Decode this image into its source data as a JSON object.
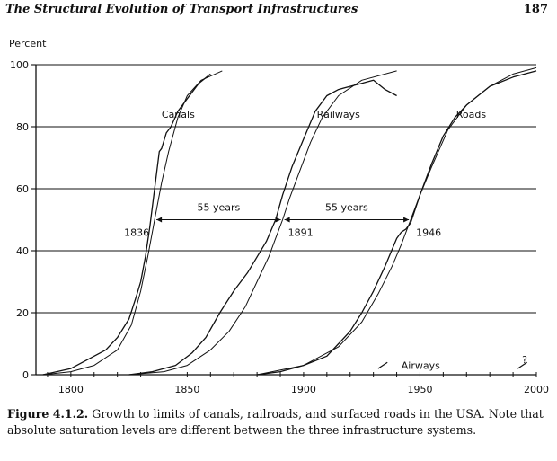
{
  "page": {
    "running_title": "The Structural Evolution of Transport Infrastructures",
    "page_number": "187"
  },
  "caption": {
    "label": "Figure 4.1.2.",
    "text": "Growth to limits of canals, railroads, and surfaced roads in the USA. Note that absolute saturation levels are different between the three infrastructure systems."
  },
  "chart_data": {
    "type": "line",
    "title": "",
    "ylabel": "Percent",
    "xlabel": "",
    "xlim": [
      1785,
      2000
    ],
    "ylim": [
      0,
      100
    ],
    "x_ticks": [
      1800,
      1850,
      1900,
      1950,
      2000
    ],
    "y_ticks": [
      0,
      20,
      40,
      60,
      80,
      100
    ],
    "horizontal_gridlines": true,
    "series": [
      {
        "name": "Canals",
        "style": "data",
        "x": [
          1788,
          1800,
          1815,
          1820,
          1825,
          1828,
          1830,
          1832,
          1834,
          1836,
          1838,
          1839,
          1841,
          1843,
          1846,
          1850,
          1855,
          1860
        ],
        "values": [
          0,
          2,
          8,
          12,
          18,
          25,
          30,
          38,
          48,
          60,
          72,
          73,
          78,
          80,
          85,
          89,
          94,
          97
        ]
      },
      {
        "name": "Canals",
        "style": "logistic-fit",
        "x": [
          1788,
          1800,
          1810,
          1820,
          1826,
          1830,
          1833,
          1836,
          1839,
          1842,
          1846,
          1850,
          1856,
          1865
        ],
        "values": [
          0,
          1,
          3,
          8,
          16,
          27,
          38,
          50,
          62,
          72,
          83,
          90,
          95,
          98
        ]
      },
      {
        "name": "Railways",
        "style": "data",
        "x": [
          1825,
          1835,
          1845,
          1852,
          1858,
          1864,
          1870,
          1876,
          1880,
          1884,
          1888,
          1891,
          1895,
          1900,
          1905,
          1910,
          1915,
          1920,
          1925,
          1930,
          1935,
          1940
        ],
        "values": [
          0,
          1,
          3,
          7,
          12,
          20,
          27,
          33,
          38,
          43,
          50,
          58,
          67,
          76,
          85,
          90,
          92,
          93,
          94,
          95,
          92,
          90
        ]
      },
      {
        "name": "Railways",
        "style": "logistic-fit",
        "x": [
          1825,
          1840,
          1850,
          1860,
          1868,
          1875,
          1880,
          1885,
          1888,
          1891,
          1894,
          1898,
          1903,
          1908,
          1915,
          1925,
          1940
        ],
        "values": [
          0,
          1,
          3,
          8,
          14,
          22,
          30,
          38,
          44,
          50,
          57,
          65,
          75,
          83,
          90,
          95,
          98
        ]
      },
      {
        "name": "Roads",
        "style": "data",
        "x": [
          1880,
          1890,
          1900,
          1910,
          1915,
          1920,
          1925,
          1930,
          1935,
          1940,
          1942,
          1944,
          1946,
          1950,
          1955,
          1960,
          1965,
          1970,
          1975,
          1980,
          1990,
          2000
        ],
        "values": [
          0,
          1,
          3,
          6,
          10,
          14,
          20,
          27,
          35,
          44,
          46,
          47,
          49,
          58,
          68,
          77,
          83,
          87,
          90,
          93,
          96,
          98
        ]
      },
      {
        "name": "Roads",
        "style": "logistic-fit",
        "x": [
          1880,
          1900,
          1915,
          1925,
          1932,
          1938,
          1942,
          1946,
          1950,
          1955,
          1962,
          1970,
          1980,
          1990,
          2000
        ],
        "values": [
          0,
          3,
          9,
          17,
          26,
          35,
          42,
          50,
          58,
          67,
          79,
          87,
          93,
          97,
          99
        ]
      }
    ],
    "annotations": [
      {
        "text": "Canals",
        "x": 1839,
        "y": 84
      },
      {
        "text": "Railways",
        "x": 1915,
        "y": 84
      },
      {
        "text": "Roads",
        "x": 1972,
        "y": 84
      },
      {
        "text": "1836",
        "x": 1836,
        "y": 46
      },
      {
        "text": "1891",
        "x": 1891,
        "y": 46
      },
      {
        "text": "1946",
        "x": 1946,
        "y": 46
      },
      {
        "text": "55 years",
        "x": 1863.5,
        "y": 54
      },
      {
        "text": "55 years",
        "x": 1918.5,
        "y": 54
      },
      {
        "text": "Airways",
        "x": 1942,
        "y": 3
      },
      {
        "text": "?",
        "x": 1995,
        "y": 5
      }
    ],
    "intervals": [
      {
        "from": 1836,
        "to": 1891,
        "y": 50,
        "label": "55 years"
      },
      {
        "from": 1891,
        "to": 1946,
        "y": 50,
        "label": "55 years"
      }
    ],
    "airways_segments": [
      {
        "x": [
          1932,
          1936
        ],
        "values": [
          2,
          4
        ]
      },
      {
        "x": [
          1992,
          1996
        ],
        "values": [
          2,
          4
        ]
      }
    ]
  }
}
